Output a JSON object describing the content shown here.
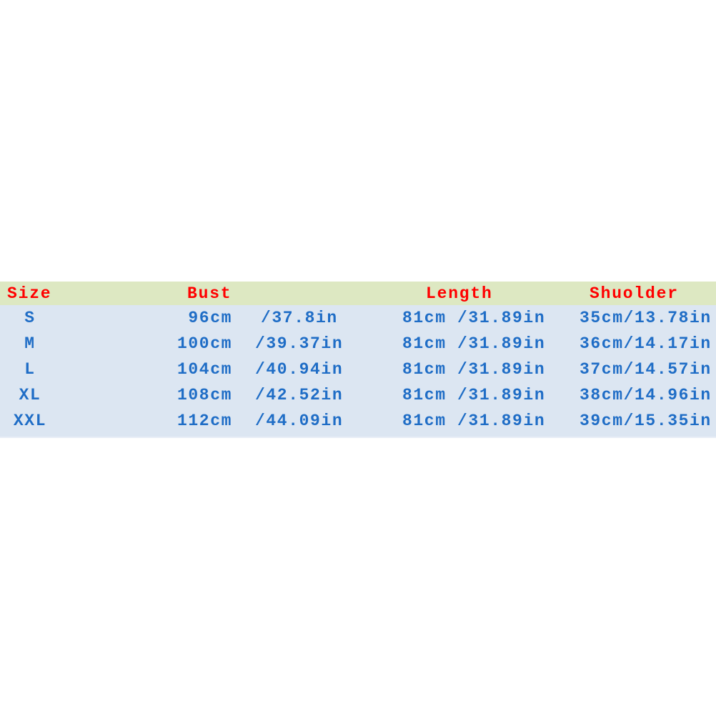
{
  "colors": {
    "header_bg": "#dde8c2",
    "body_bg": "#dce6f2",
    "header_text": "#ff0000",
    "body_text": "#1f6dc6"
  },
  "headers": {
    "size": "Size",
    "bust": "Bust",
    "length": "Length",
    "shoulder": "Shuolder"
  },
  "rows": [
    {
      "size": "S",
      "bust_cm": "96cm",
      "bust_in": "/37.8in",
      "length": "81cm /31.89in",
      "shoulder": "35cm/13.78in"
    },
    {
      "size": "M",
      "bust_cm": "100cm",
      "bust_in": "/39.37in",
      "length": "81cm /31.89in",
      "shoulder": "36cm/14.17in"
    },
    {
      "size": "L",
      "bust_cm": "104cm",
      "bust_in": "/40.94in",
      "length": "81cm /31.89in",
      "shoulder": "37cm/14.57in"
    },
    {
      "size": "XL",
      "bust_cm": "108cm",
      "bust_in": "/42.52in",
      "length": "81cm /31.89in",
      "shoulder": "38cm/14.96in"
    },
    {
      "size": "XXL",
      "bust_cm": "112cm",
      "bust_in": "/44.09in",
      "length": "81cm /31.89in",
      "shoulder": "39cm/15.35in"
    }
  ]
}
